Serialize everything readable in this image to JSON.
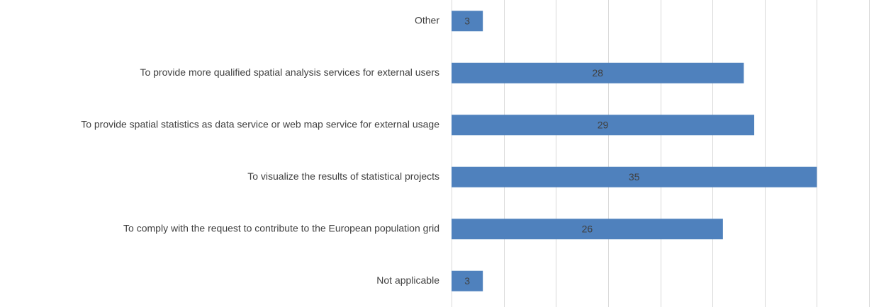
{
  "chart_data": {
    "type": "hbar",
    "categories": [
      "Other",
      "To provide more qualified spatial analysis services for external users",
      "To provide spatial statistics as data service or web map service for external usage",
      "To visualize the results of statistical projects",
      "To comply with the request to contribute to the European population grid",
      "Not applicable"
    ],
    "values": [
      3,
      28,
      29,
      35,
      26,
      3
    ],
    "color": "#4f81bd",
    "xlim": [
      0,
      40
    ],
    "xticks": [
      0,
      5,
      10,
      15,
      20,
      25,
      30,
      35,
      40
    ],
    "grid": true
  }
}
